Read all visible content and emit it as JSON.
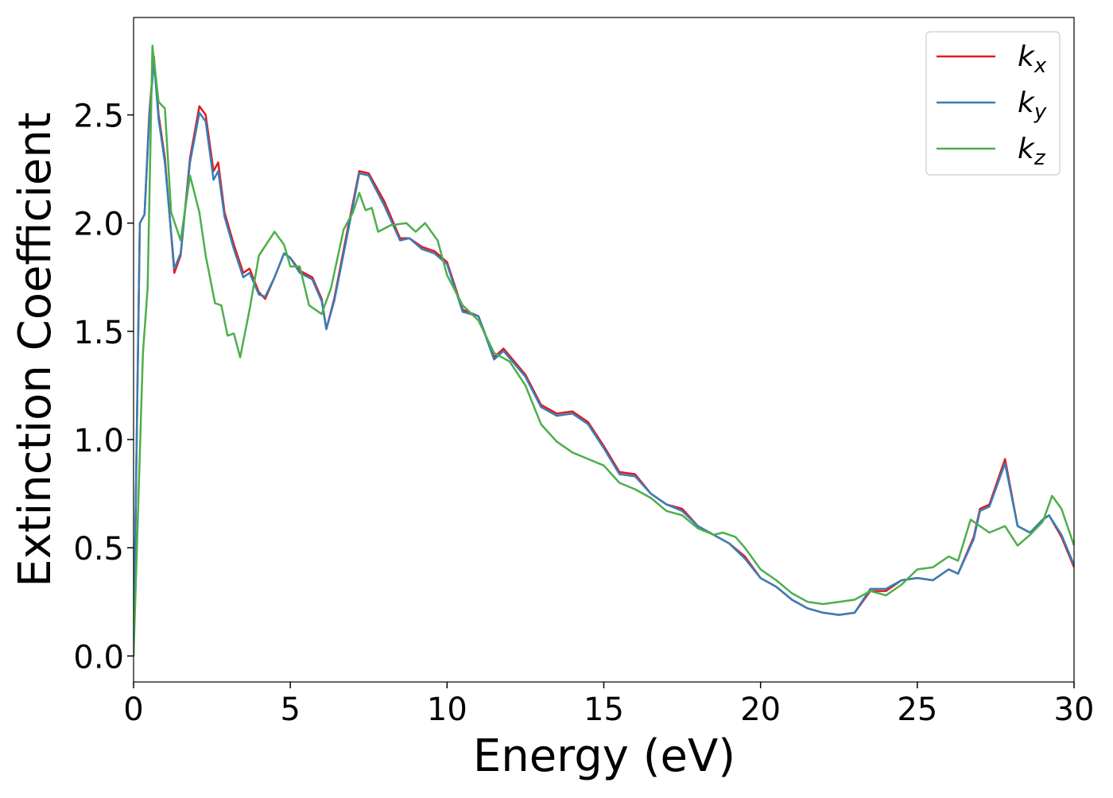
{
  "chart_data": {
    "type": "line",
    "xlabel": "Energy (eV)",
    "ylabel": "Extinction Coefficient",
    "xlim": [
      0,
      30
    ],
    "ylim": [
      -0.12,
      2.95
    ],
    "xticks": [
      0,
      5,
      10,
      15,
      20,
      25,
      30
    ],
    "yticks": [
      {
        "value": 0,
        "label": "0.0"
      },
      0.5,
      {
        "value": 1,
        "label": "1.0"
      },
      1.5,
      {
        "value": 2,
        "label": "2.0"
      },
      2.5
    ],
    "legend": "upper right",
    "grid": false,
    "series": [
      {
        "name": "kx",
        "color": "#e41a1c",
        "x": [
          0,
          0.2,
          0.35,
          0.5,
          0.65,
          0.8,
          1.0,
          1.3,
          1.5,
          1.8,
          2.1,
          2.3,
          2.55,
          2.7,
          2.9,
          3.2,
          3.5,
          3.7,
          4.0,
          4.2,
          4.5,
          4.8,
          5.0,
          5.3,
          5.7,
          6.0,
          6.15,
          6.4,
          6.8,
          7.2,
          7.5,
          8.0,
          8.5,
          8.8,
          9.2,
          9.6,
          10.0,
          10.5,
          11.0,
          11.5,
          11.8,
          12.5,
          13.0,
          13.5,
          14.0,
          14.5,
          15.0,
          15.5,
          16.0,
          16.5,
          17.0,
          17.5,
          18.0,
          18.5,
          19.0,
          19.5,
          20.0,
          20.5,
          21.0,
          21.5,
          22.0,
          22.5,
          23.0,
          23.5,
          24.0,
          24.5,
          25.0,
          25.5,
          26.0,
          26.3,
          26.8,
          27.0,
          27.3,
          27.8,
          28.2,
          28.6,
          29.0,
          29.2,
          29.6,
          30
        ],
        "values": [
          0,
          2.0,
          2.04,
          2.5,
          2.77,
          2.5,
          2.3,
          1.77,
          1.85,
          2.3,
          2.54,
          2.5,
          2.24,
          2.28,
          2.05,
          1.9,
          1.77,
          1.79,
          1.68,
          1.65,
          1.75,
          1.86,
          1.84,
          1.78,
          1.75,
          1.65,
          1.51,
          1.65,
          1.95,
          2.24,
          2.23,
          2.1,
          1.93,
          1.93,
          1.89,
          1.87,
          1.82,
          1.6,
          1.57,
          1.38,
          1.42,
          1.3,
          1.16,
          1.12,
          1.13,
          1.08,
          0.97,
          0.85,
          0.84,
          0.75,
          0.7,
          0.68,
          0.6,
          0.56,
          0.52,
          0.46,
          0.36,
          0.32,
          0.26,
          0.22,
          0.2,
          0.19,
          0.2,
          0.3,
          0.3,
          0.35,
          0.36,
          0.35,
          0.4,
          0.38,
          0.55,
          0.68,
          0.7,
          0.91,
          0.6,
          0.57,
          0.63,
          0.65,
          0.55,
          0.41
        ]
      },
      {
        "name": "ky",
        "color": "#377eb8",
        "x": [
          0,
          0.2,
          0.35,
          0.5,
          0.65,
          0.8,
          1.0,
          1.3,
          1.5,
          1.8,
          2.1,
          2.3,
          2.55,
          2.7,
          2.9,
          3.2,
          3.5,
          3.7,
          4.0,
          4.2,
          4.5,
          4.8,
          5.0,
          5.3,
          5.7,
          6.0,
          6.15,
          6.4,
          6.8,
          7.2,
          7.5,
          8.0,
          8.5,
          8.8,
          9.2,
          9.6,
          10.0,
          10.5,
          11.0,
          11.5,
          11.8,
          12.5,
          13.0,
          13.5,
          14.0,
          14.5,
          15.0,
          15.5,
          16.0,
          16.5,
          17.0,
          17.5,
          18.0,
          18.5,
          19.0,
          19.5,
          20.0,
          20.5,
          21.0,
          21.5,
          22.0,
          22.5,
          23.0,
          23.5,
          24.0,
          24.5,
          25.0,
          25.5,
          26.0,
          26.3,
          26.8,
          27.0,
          27.3,
          27.8,
          28.2,
          28.6,
          29.0,
          29.2,
          29.6,
          30
        ],
        "values": [
          0,
          2.0,
          2.04,
          2.48,
          2.75,
          2.48,
          2.28,
          1.79,
          1.86,
          2.28,
          2.51,
          2.47,
          2.2,
          2.24,
          2.03,
          1.88,
          1.75,
          1.77,
          1.67,
          1.66,
          1.75,
          1.86,
          1.84,
          1.77,
          1.74,
          1.64,
          1.51,
          1.64,
          1.93,
          2.23,
          2.22,
          2.08,
          1.92,
          1.93,
          1.88,
          1.86,
          1.81,
          1.59,
          1.57,
          1.37,
          1.41,
          1.29,
          1.15,
          1.11,
          1.12,
          1.07,
          0.96,
          0.84,
          0.83,
          0.75,
          0.7,
          0.67,
          0.6,
          0.56,
          0.52,
          0.45,
          0.36,
          0.32,
          0.26,
          0.22,
          0.2,
          0.19,
          0.2,
          0.31,
          0.31,
          0.35,
          0.36,
          0.35,
          0.4,
          0.38,
          0.54,
          0.67,
          0.69,
          0.89,
          0.6,
          0.57,
          0.63,
          0.65,
          0.56,
          0.42
        ]
      },
      {
        "name": "kz",
        "color": "#4daf4a",
        "x": [
          0,
          0.3,
          0.45,
          0.6,
          0.8,
          1.0,
          1.2,
          1.5,
          1.8,
          2.1,
          2.3,
          2.6,
          2.8,
          3.0,
          3.2,
          3.4,
          3.7,
          4.0,
          4.5,
          4.8,
          5.0,
          5.3,
          5.6,
          6.0,
          6.3,
          6.7,
          7.0,
          7.2,
          7.4,
          7.6,
          7.8,
          8.2,
          8.7,
          9.0,
          9.3,
          9.7,
          10.0,
          10.5,
          11.0,
          11.5,
          12.0,
          12.5,
          13.0,
          13.5,
          14.0,
          14.5,
          15.0,
          15.5,
          16.0,
          16.5,
          17.0,
          17.5,
          18.0,
          18.5,
          18.8,
          19.2,
          19.5,
          20.0,
          20.5,
          21.0,
          21.5,
          22.0,
          22.5,
          23.0,
          23.5,
          24.0,
          24.5,
          25.0,
          25.5,
          26.0,
          26.3,
          26.7,
          27.0,
          27.3,
          27.8,
          28.2,
          28.6,
          29.0,
          29.3,
          29.6,
          30
        ],
        "values": [
          0,
          1.4,
          1.7,
          2.82,
          2.56,
          2.53,
          2.05,
          1.92,
          2.22,
          2.05,
          1.85,
          1.63,
          1.62,
          1.48,
          1.49,
          1.38,
          1.6,
          1.85,
          1.96,
          1.9,
          1.8,
          1.8,
          1.62,
          1.58,
          1.7,
          1.97,
          2.05,
          2.14,
          2.06,
          2.07,
          1.96,
          1.99,
          2.0,
          1.96,
          2.0,
          1.92,
          1.76,
          1.62,
          1.55,
          1.4,
          1.36,
          1.25,
          1.07,
          0.99,
          0.94,
          0.91,
          0.88,
          0.8,
          0.77,
          0.73,
          0.67,
          0.65,
          0.59,
          0.56,
          0.57,
          0.55,
          0.5,
          0.4,
          0.35,
          0.29,
          0.25,
          0.24,
          0.25,
          0.26,
          0.3,
          0.28,
          0.33,
          0.4,
          0.41,
          0.46,
          0.44,
          0.63,
          0.6,
          0.57,
          0.6,
          0.51,
          0.56,
          0.62,
          0.74,
          0.68,
          0.51
        ]
      }
    ]
  }
}
